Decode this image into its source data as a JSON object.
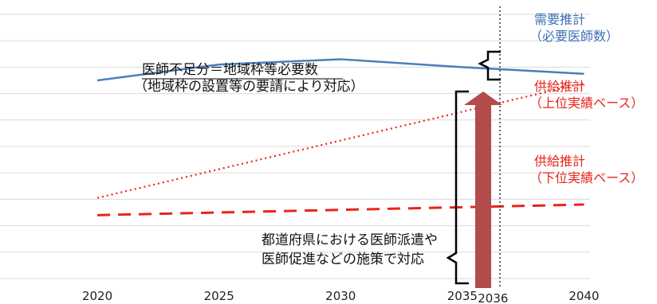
{
  "chart_data": {
    "type": "line",
    "x": [
      2020,
      2025,
      2030,
      2035,
      2040
    ],
    "xlim": [
      2016,
      2043
    ],
    "ylim": [
      0,
      10
    ],
    "tick_labels": [
      "2020",
      "2025",
      "2030",
      "2035",
      "2040"
    ],
    "marker_year": 2036,
    "marker_label": "2036",
    "series": [
      {
        "name_lines": [
          "需要推計",
          "（必要医師数）"
        ],
        "x": [
          2020,
          2025,
          2030,
          2035,
          2040
        ],
        "values": [
          7.5,
          8.1,
          8.3,
          8.0,
          7.75
        ],
        "style": "solid",
        "color": "#4a7ebb"
      },
      {
        "name_lines": [
          "供給推計",
          "（上位実績ベース）"
        ],
        "x": [
          2020,
          2040
        ],
        "values": [
          3.05,
          7.4
        ],
        "style": "dotted",
        "color": "#e8241a"
      },
      {
        "name_lines": [
          "供給推計",
          "（下位実績ベース）"
        ],
        "x": [
          2020,
          2040
        ],
        "values": [
          2.4,
          2.8
        ],
        "style": "dashed",
        "color": "#e8241a"
      }
    ],
    "annotations": {
      "shortage_lines": [
        "医師不足分＝地域枠等必要数",
        "（地域枠の設置等の要請により対応）"
      ],
      "measures_lines": [
        "都道府県における医師派遣や",
        "医師促進などの施策で対応"
      ]
    },
    "arrow_color": "#b24b4b",
    "grid": true
  }
}
